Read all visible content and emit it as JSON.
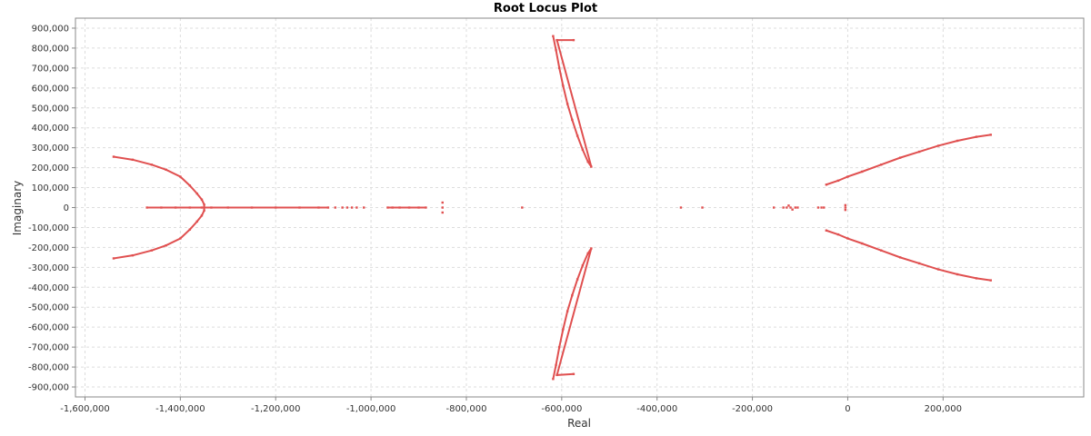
{
  "chart_data": {
    "type": "scatter",
    "title": "Root Locus Plot",
    "xlabel": "Real",
    "ylabel": "Imaginary",
    "xlim": [
      -1620000,
      495000
    ],
    "ylim": [
      -950000,
      950000
    ],
    "grid": true,
    "legend": "none",
    "color": "#e05050",
    "xticks": [
      -1600000,
      -1400000,
      -1200000,
      -1000000,
      -800000,
      -600000,
      -400000,
      -200000,
      0,
      200000
    ],
    "xtick_labels": [
      "-1,600,000",
      "-1,400,000",
      "-1,200,000",
      "-1,000,000",
      "-800,000",
      "-600,000",
      "-400,000",
      "-200,000",
      "0",
      "200,000"
    ],
    "yticks": [
      900000,
      800000,
      700000,
      600000,
      500000,
      400000,
      300000,
      200000,
      100000,
      0,
      -100000,
      -200000,
      -300000,
      -400000,
      -500000,
      -600000,
      -700000,
      -800000,
      -900000
    ],
    "ytick_labels": [
      "900,000",
      "800,000",
      "700,000",
      "600,000",
      "500,000",
      "400,000",
      "300,000",
      "200,000",
      "100,000",
      "0",
      "-100,000",
      "-200,000",
      "-300,000",
      "-400,000",
      "-500,000",
      "-600,000",
      "-700,000",
      "-800,000",
      "-900,000"
    ],
    "series": [
      {
        "x": [
          -1540000,
          -1500000,
          -1460000,
          -1430000,
          -1400000,
          -1380000,
          -1365000,
          -1355000,
          -1350000,
          -1350000,
          -1355000,
          -1365000,
          -1380000,
          -1400000,
          -1430000,
          -1460000,
          -1500000,
          -1540000
        ],
        "y": [
          255000,
          240000,
          215000,
          190000,
          155000,
          110000,
          70000,
          40000,
          15000,
          -15000,
          -40000,
          -70000,
          -110000,
          -155000,
          -190000,
          -215000,
          -240000,
          -255000
        ]
      },
      {
        "x": [
          -1470000,
          -1440000,
          -1410000,
          -1380000,
          -1355000,
          -1335000,
          -1300000,
          -1250000,
          -1200000,
          -1150000,
          -1110000,
          -1090000,
          -1075000,
          -1060000,
          -1050000,
          -1040000,
          -1030000,
          -1015000,
          -965000,
          -955000,
          -940000,
          -920000,
          -900000,
          -885000,
          -850000,
          -850000,
          -850000,
          -683000,
          -350000,
          -305000,
          -155000,
          -135000,
          -128000,
          -124000,
          -120000,
          -116000,
          -110000,
          -105000,
          -62000,
          -55000,
          -50000,
          -5000,
          -5000,
          -5000
        ],
        "y": [
          0,
          0,
          0,
          0,
          0,
          0,
          0,
          0,
          0,
          0,
          0,
          0,
          0,
          0,
          0,
          0,
          0,
          0,
          0,
          0,
          0,
          0,
          0,
          0,
          0,
          25000,
          -25000,
          0,
          0,
          0,
          0,
          0,
          0,
          10000,
          0,
          -10000,
          0,
          0,
          0,
          0,
          0,
          0,
          12000,
          -12000
        ]
      },
      {
        "x": [
          -618000,
          -612000,
          -605000,
          -597000,
          -588000,
          -578000,
          -567000,
          -556000,
          -545000,
          -538000,
          -610000,
          -575000
        ],
        "y": [
          860000,
          790000,
          700000,
          610000,
          520000,
          440000,
          360000,
          290000,
          230000,
          205000,
          840000,
          840000
        ]
      },
      {
        "x": [
          -618000,
          -612000,
          -605000,
          -597000,
          -588000,
          -578000,
          -567000,
          -556000,
          -545000,
          -538000,
          -610000,
          -575000
        ],
        "y": [
          -860000,
          -790000,
          -700000,
          -610000,
          -520000,
          -440000,
          -360000,
          -290000,
          -230000,
          -205000,
          -840000,
          -835000
        ]
      },
      {
        "x": [
          -45000,
          -20000,
          0,
          30000,
          70000,
          110000,
          150000,
          190000,
          230000,
          270000,
          300000
        ],
        "y": [
          115000,
          135000,
          155000,
          180000,
          215000,
          250000,
          280000,
          310000,
          335000,
          355000,
          365000
        ]
      },
      {
        "x": [
          -45000,
          -20000,
          0,
          30000,
          70000,
          110000,
          150000,
          190000,
          230000,
          270000,
          300000
        ],
        "y": [
          -115000,
          -135000,
          -155000,
          -180000,
          -215000,
          -250000,
          -280000,
          -310000,
          -335000,
          -355000,
          -365000
        ]
      }
    ]
  }
}
